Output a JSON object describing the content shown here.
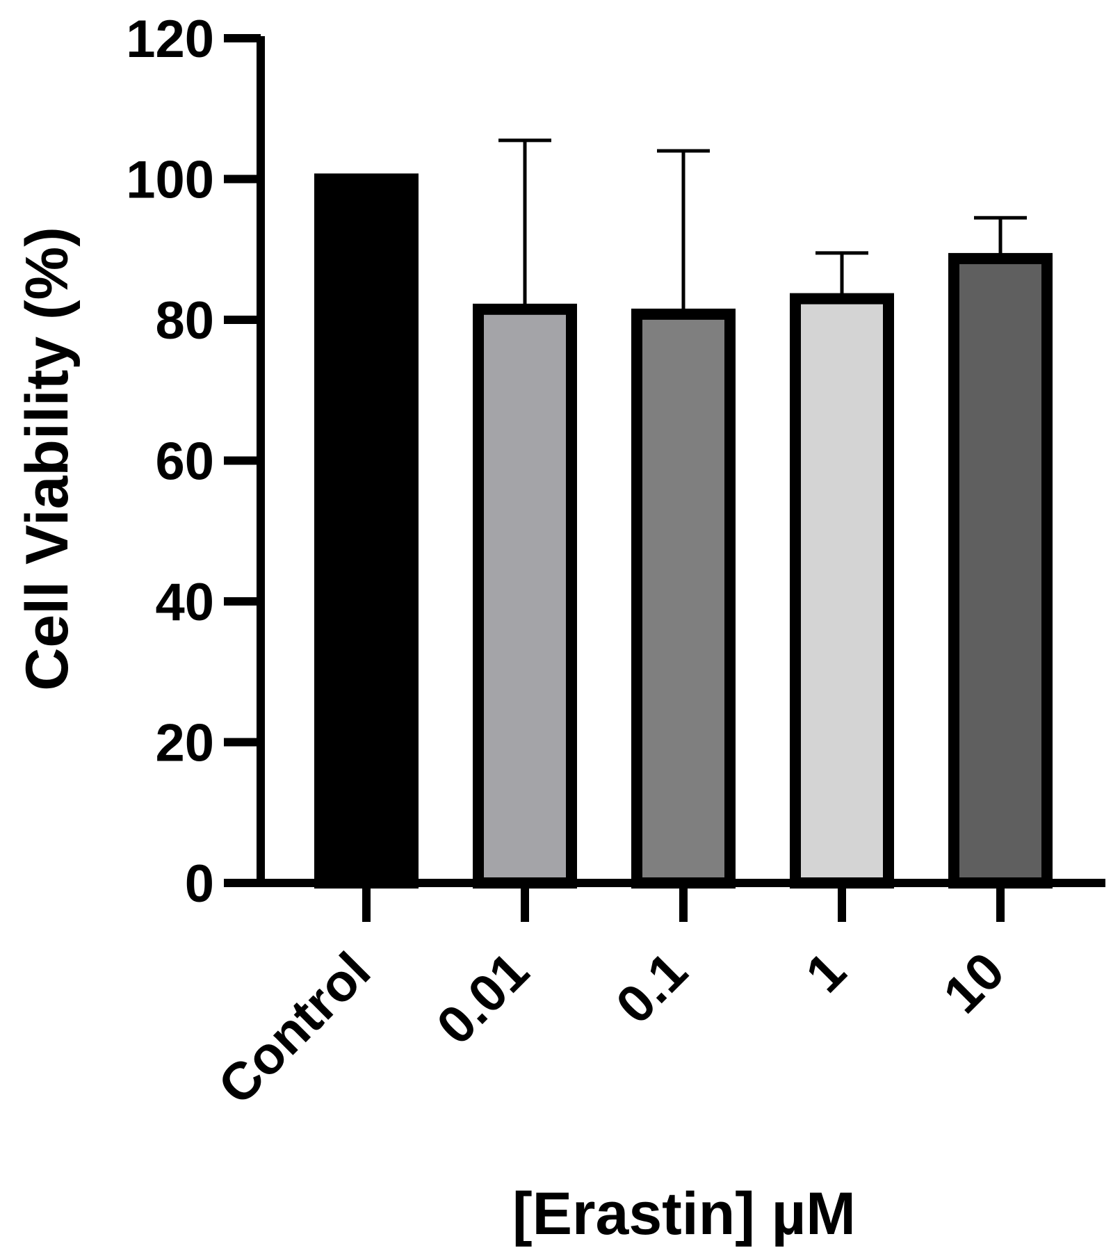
{
  "chart_data": {
    "type": "bar",
    "title": "",
    "xlabel": "[Erastin] µM",
    "ylabel": "Cell Viability (%)",
    "categories": [
      "Control",
      "0.01",
      "0.1",
      "1",
      "10"
    ],
    "values": [
      100,
      81.5,
      80.8,
      83.0,
      88.7
    ],
    "error_upper": [
      100,
      105.5,
      104.0,
      89.5,
      94.5
    ],
    "ylim": [
      0,
      120
    ],
    "yticks": [
      0,
      20,
      40,
      60,
      80,
      100,
      120
    ],
    "grid": false,
    "legend": "none",
    "colors": [
      "#000000",
      "#a4a4a8",
      "#7f7f7f",
      "#d4d4d4",
      "#5f5f5f"
    ]
  }
}
